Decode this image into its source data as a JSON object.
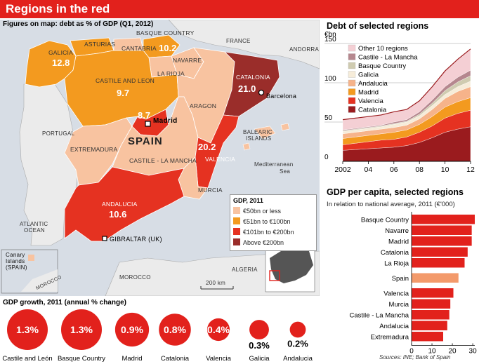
{
  "title": "Regions in the red",
  "map": {
    "subtitle": "Figures on map: debt as % of GDP (Q1, 2012)",
    "country": "SPAIN",
    "labels": {
      "france": "FRANCE",
      "andorra": "ANDORRA",
      "portugal": "PORTUGAL",
      "balearic": "BALEARIC",
      "islands": "ISLANDS",
      "mediterranean": "Mediterranean",
      "sea": "Sea",
      "atlantic": "ATLANTIC",
      "ocean": "OCEAN",
      "morocco": "MOROCCO",
      "algeria": "ALGERIA",
      "canary1": "Canary",
      "canary2": "Islands",
      "canary3": "(SPAIN)",
      "morocco_small": "MOROCCO",
      "scale": "200 km",
      "madrid": "Madrid",
      "barcelona": "Barcelona",
      "gibraltar": "GIBRALTAR (UK)"
    },
    "regions": [
      {
        "name": "GALICIA",
        "value": "12.8"
      },
      {
        "name": "ASTURIAS",
        "value": ""
      },
      {
        "name": "CANTABRIA",
        "value": ""
      },
      {
        "name": "BASQUE COUNTRY",
        "value": "10.2"
      },
      {
        "name": "NAVARRE",
        "value": ""
      },
      {
        "name": "CASTILE AND LEON",
        "value": "9.7"
      },
      {
        "name": "LA RIOJA",
        "value": ""
      },
      {
        "name": "ARAGON",
        "value": ""
      },
      {
        "name": "CATALONIA",
        "value": "21.0"
      },
      {
        "name": "MADRID",
        "value": "8.7"
      },
      {
        "name": "EXTREMADURA",
        "value": ""
      },
      {
        "name": "CASTILE - LA MANCHA",
        "value": ""
      },
      {
        "name": "VALENCIA",
        "value": "20.2"
      },
      {
        "name": "MURCIA",
        "value": ""
      },
      {
        "name": "ANDALUCIA",
        "value": "10.6"
      }
    ],
    "legend": {
      "title": "GDP, 2011",
      "items": [
        {
          "label": "€50bn or less",
          "color": "#f8c3a0"
        },
        {
          "label": "€51bn to €100bn",
          "color": "#f39a1f"
        },
        {
          "label": "€101bn to €200bn",
          "color": "#e53221"
        },
        {
          "label": "Above €200bn",
          "color": "#9a2d2a"
        }
      ]
    }
  },
  "chart_data": [
    {
      "type": "area",
      "title": "Debt of selected regions",
      "ylabel": "€bn",
      "x": [
        2002,
        2003,
        2004,
        2005,
        2006,
        2007,
        2008,
        2009,
        2010,
        2011,
        2012
      ],
      "x_tick_labels": [
        "2002",
        "04",
        "06",
        "08",
        "10",
        "12"
      ],
      "y_ticks": [
        0,
        50,
        100,
        150
      ],
      "ylim": [
        0,
        150
      ],
      "stacked": true,
      "series": [
        {
          "name": "Catalonia",
          "color": "#9a1b1e",
          "values": [
            14,
            15,
            16,
            17,
            18,
            20,
            24,
            30,
            37,
            41,
            44
          ]
        },
        {
          "name": "Valencia",
          "color": "#e53221",
          "values": [
            7,
            8,
            9,
            10,
            10,
            11,
            13,
            15,
            18,
            20,
            21
          ]
        },
        {
          "name": "Madrid",
          "color": "#f39a1f",
          "values": [
            8,
            8,
            8,
            8,
            9,
            9,
            10,
            12,
            14,
            15,
            16
          ]
        },
        {
          "name": "Andalucia",
          "color": "#f6b38a",
          "values": [
            6,
            6,
            6,
            6,
            6,
            6,
            7,
            9,
            11,
            13,
            14
          ]
        },
        {
          "name": "Galicia",
          "color": "#f6ecd9",
          "values": [
            3,
            3,
            3,
            3,
            4,
            4,
            4,
            5,
            5,
            6,
            7
          ]
        },
        {
          "name": "Basque Country",
          "color": "#cfcbb0",
          "values": [
            1,
            1,
            1,
            1,
            1,
            1,
            2,
            3,
            5,
            6,
            7
          ]
        },
        {
          "name": "Castile - La Mancha",
          "color": "#b5878e",
          "values": [
            1,
            1,
            1,
            1,
            2,
            2,
            3,
            4,
            5,
            6,
            7
          ]
        },
        {
          "name": "Other 10 regions",
          "color": "#f4cfd4",
          "values": [
            13,
            13,
            13,
            13,
            13,
            13,
            14,
            17,
            20,
            23,
            27
          ]
        }
      ]
    },
    {
      "type": "bar",
      "orientation": "horizontal",
      "title": "GDP per capita, selected regions",
      "subtitle": "In relation to national average, 2011 (€'000)",
      "categories": [
        "Basque Country",
        "Navarre",
        "Madrid",
        "Catalonia",
        "La Rioja",
        "Spain",
        "Valencia",
        "Murcia",
        "Castile - La Mancha",
        "Andalucia",
        "Extremadura"
      ],
      "values": [
        31,
        29.5,
        29.5,
        27.5,
        26,
        23,
        20.5,
        19,
        18.5,
        17.5,
        15.5
      ],
      "highlight": "Spain",
      "bar_color": "#e2211c",
      "highlight_color": "#f39a6b",
      "xlim": [
        0,
        31
      ],
      "x_ticks": [
        0,
        10,
        20,
        30
      ]
    },
    {
      "type": "bubble",
      "title": "GDP growth, 2011 (annual % change)",
      "categories": [
        "Castile and León",
        "Basque Country",
        "Madrid",
        "Catalonia",
        "Valencia",
        "Galicia",
        "Andalucia"
      ],
      "values": [
        1.3,
        1.3,
        0.9,
        0.8,
        0.4,
        0.3,
        0.2
      ],
      "labels": [
        "1.3%",
        "1.3%",
        "0.9%",
        "0.8%",
        "0.4%",
        "0.3%",
        "0.2%"
      ],
      "color": "#e2211c"
    }
  ],
  "source": "Sources: INE; Bank of Spain"
}
